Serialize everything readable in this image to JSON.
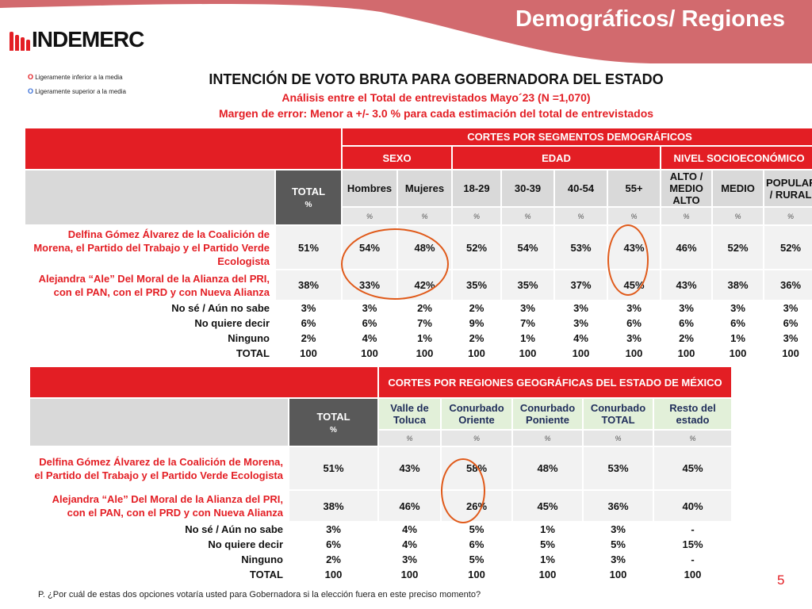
{
  "header": {
    "title": "Demográficos/ Regiones",
    "logo": "INDEMERC",
    "brand_color": "#e31e24"
  },
  "legend": [
    {
      "marker": "O",
      "text": "Ligeramente inferior a la media",
      "color": "#e31e24"
    },
    {
      "marker": "O",
      "text": "Ligeramente superior a la media",
      "color": "#3a6fd8"
    }
  ],
  "title": "INTENCIÓN DE VOTO  BRUTA PARA GOBERNADORA DEL ESTADO",
  "subtitle1": "Análisis entre el Total de entrevistados Mayo´23 (N =1,070)",
  "subtitle2": "Margen de error: Menor a +/-  3.0 %  para cada estimación del total de entrevistados",
  "table1": {
    "super_header": "CORTES POR SEGMENTOS DEMOGRÁFICOS",
    "groups": [
      "SEXO",
      "EDAD",
      "NIVEL SOCIOECONÓMICO"
    ],
    "total_label": "TOTAL",
    "pct": "%",
    "columns": [
      "Hombres",
      "Mujeres",
      "18-29",
      "30-39",
      "40-54",
      "55+",
      "ALTO / MEDIO ALTO",
      "MEDIO",
      "POPULAR / RURAL"
    ],
    "rows": [
      {
        "label": "Delfina Gómez Álvarez de la Coalición de Morena, el Partido del Trabajo y el Partido Verde Ecologista",
        "total": "51%",
        "values": [
          "54%",
          "48%",
          "52%",
          "54%",
          "53%",
          "43%",
          "46%",
          "52%",
          "52%"
        ]
      },
      {
        "label": "Alejandra “Ale” Del Moral de la Alianza del PRI, con el PAN, con el PRD y con Nueva Alianza",
        "total": "38%",
        "values": [
          "33%",
          "42%",
          "35%",
          "35%",
          "37%",
          "45%",
          "43%",
          "38%",
          "36%"
        ]
      },
      {
        "label": "No sé / Aún no sabe",
        "total": "3%",
        "values": [
          "3%",
          "2%",
          "2%",
          "3%",
          "3%",
          "3%",
          "3%",
          "3%",
          "3%"
        ]
      },
      {
        "label": "No quiere decir",
        "total": "6%",
        "values": [
          "6%",
          "7%",
          "9%",
          "7%",
          "3%",
          "6%",
          "6%",
          "6%",
          "6%"
        ]
      },
      {
        "label": "Ninguno",
        "total": "2%",
        "values": [
          "4%",
          "1%",
          "2%",
          "1%",
          "4%",
          "3%",
          "2%",
          "1%",
          "3%"
        ]
      },
      {
        "label": "TOTAL",
        "total": "100",
        "values": [
          "100",
          "100",
          "100",
          "100",
          "100",
          "100",
          "100",
          "100",
          "100"
        ]
      }
    ]
  },
  "table2": {
    "super_header": "CORTES POR REGIONES GEOGRÁFICAS DEL ESTADO DE MÉXICO",
    "total_label": "TOTAL",
    "pct": "%",
    "columns": [
      "Valle de Toluca",
      "Conurbado Oriente",
      "Conurbado Poniente",
      "Conurbado TOTAL",
      "Resto del estado"
    ],
    "rows": [
      {
        "label": "Delfina Gómez Álvarez de la Coalición de Morena, el Partido del Trabajo y el Partido Verde Ecologista",
        "total": "51%",
        "values": [
          "43%",
          "58%",
          "48%",
          "53%",
          "45%"
        ]
      },
      {
        "label": "Alejandra “Ale” Del Moral de la Alianza del PRI, con el PAN, con el PRD y con Nueva Alianza",
        "total": "38%",
        "values": [
          "46%",
          "26%",
          "45%",
          "36%",
          "40%"
        ]
      },
      {
        "label": "No sé / Aún no sabe",
        "total": "3%",
        "values": [
          "4%",
          "5%",
          "1%",
          "3%",
          "-"
        ]
      },
      {
        "label": "No quiere decir",
        "total": "6%",
        "values": [
          "4%",
          "6%",
          "5%",
          "5%",
          "15%"
        ]
      },
      {
        "label": "Ninguno",
        "total": "2%",
        "values": [
          "3%",
          "5%",
          "1%",
          "3%",
          "-"
        ]
      },
      {
        "label": "TOTAL",
        "total": "100",
        "values": [
          "100",
          "100",
          "100",
          "100",
          "100"
        ]
      }
    ]
  },
  "footnote": "P.  ¿Por cuál de estas dos opciones votaría usted para Gobernadora si la elección fuera en este preciso momento?",
  "page_number": "5"
}
